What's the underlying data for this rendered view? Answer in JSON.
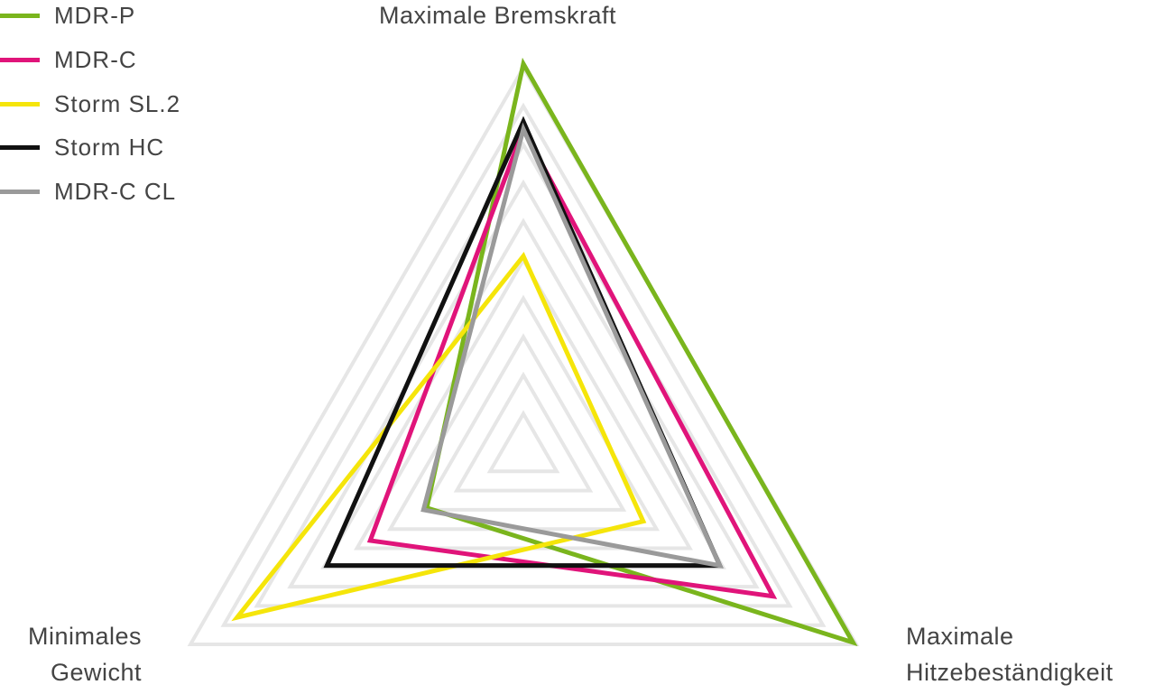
{
  "chart_data": {
    "type": "radar",
    "axes": [
      "Maximale Bremskraft",
      "Maximale Hitzebeständigkeit",
      "Minimales Gewicht"
    ],
    "axis_label_lines": {
      "top": [
        "Maximale Bremskraft"
      ],
      "right": [
        "Maximale",
        "Hitzebeständigkeit"
      ],
      "left": [
        "Minimales",
        "Gewicht"
      ]
    },
    "range": [
      0,
      10
    ],
    "grid": true,
    "grid_levels": 10,
    "legend_position": "top-left",
    "series": [
      {
        "name": "MDR-P",
        "color": "#7ab51d",
        "values": [
          10.1,
          9.9,
          2.9
        ]
      },
      {
        "name": "MDR-C",
        "color": "#e0147a",
        "values": [
          8.4,
          7.5,
          4.6
        ]
      },
      {
        "name": "Storm SL.2",
        "color": "#f5e50a",
        "values": [
          5.1,
          3.6,
          8.6
        ]
      },
      {
        "name": "Storm HC",
        "color": "#111111",
        "values": [
          8.6,
          5.9,
          5.9
        ]
      },
      {
        "name": "MDR-C CL",
        "color": "#9a9a9a",
        "values": [
          8.4,
          5.9,
          3.0
        ]
      }
    ]
  }
}
